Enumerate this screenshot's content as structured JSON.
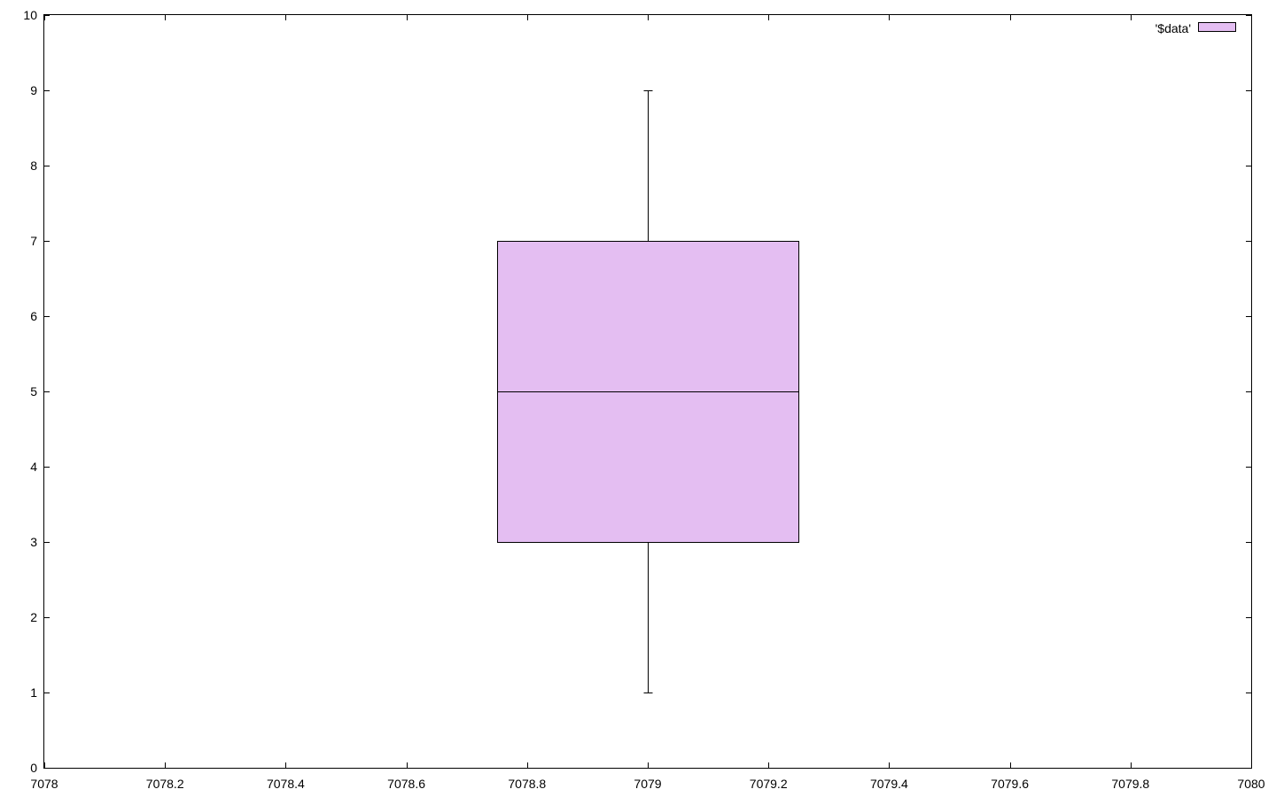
{
  "chart_data": {
    "type": "boxplot",
    "title": "",
    "xlabel": "",
    "ylabel": "",
    "xlim": [
      7078,
      7080
    ],
    "ylim": [
      0,
      10
    ],
    "xticks": [
      "7078",
      "7078.2",
      "7078.4",
      "7078.6",
      "7078.8",
      "7079",
      "7079.2",
      "7079.4",
      "7079.6",
      "7079.8",
      "7080"
    ],
    "yticks": [
      "0",
      "1",
      "2",
      "3",
      "4",
      "5",
      "6",
      "7",
      "8",
      "9",
      "10"
    ],
    "grid": false,
    "legend_position": "top-right",
    "series": [
      {
        "name": "'$data'",
        "color": "#e4bef2",
        "x": 7079,
        "box_width": 0.5,
        "min": 1,
        "q1": 3,
        "median": 5,
        "q3": 7,
        "max": 9
      }
    ]
  }
}
